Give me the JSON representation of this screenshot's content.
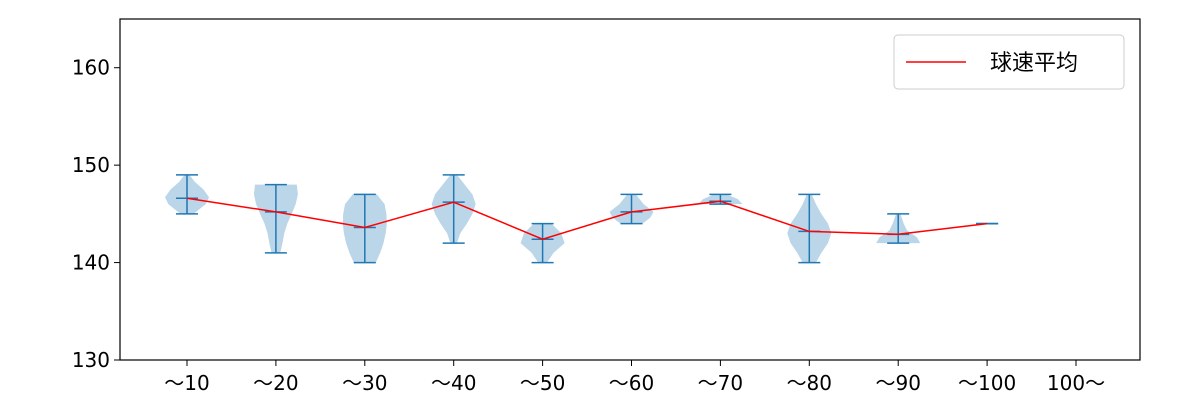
{
  "chart_data": {
    "type": "violin",
    "title": "",
    "xlabel": "",
    "ylabel": "",
    "categories": [
      "～10",
      "～20",
      "～30",
      "～40",
      "～50",
      "～60",
      "～70",
      "～80",
      "～90",
      "～100",
      "100～"
    ],
    "ylim": [
      130,
      165
    ],
    "yticks": [
      130,
      140,
      150,
      160
    ],
    "series": [
      {
        "name": "球速平均",
        "color": "#ff0000",
        "values": [
          146.6,
          145.2,
          143.6,
          146.2,
          142.4,
          145.2,
          146.3,
          143.2,
          142.9,
          144.0,
          null
        ]
      }
    ],
    "distributions": [
      {
        "category": "～10",
        "min": 145,
        "max": 149,
        "mean": 146.6,
        "profile": [
          [
            145,
            0.3
          ],
          [
            146,
            0.85
          ],
          [
            146.7,
            1.0
          ],
          [
            147.5,
            0.75
          ],
          [
            148.3,
            0.35
          ],
          [
            149,
            0.12
          ]
        ]
      },
      {
        "category": "～20",
        "min": 141,
        "max": 148,
        "mean": 145.2,
        "profile": [
          [
            141,
            0.2
          ],
          [
            142,
            0.3
          ],
          [
            143,
            0.38
          ],
          [
            144,
            0.52
          ],
          [
            145,
            0.72
          ],
          [
            146,
            0.9
          ],
          [
            147,
            1.0
          ],
          [
            148,
            0.95
          ]
        ]
      },
      {
        "category": "～30",
        "min": 140,
        "max": 147,
        "mean": 143.6,
        "profile": [
          [
            140,
            0.5
          ],
          [
            141,
            0.7
          ],
          [
            142,
            0.85
          ],
          [
            143,
            0.95
          ],
          [
            144,
            1.0
          ],
          [
            145,
            0.98
          ],
          [
            146,
            0.9
          ],
          [
            147,
            0.55
          ]
        ]
      },
      {
        "category": "～40",
        "min": 142,
        "max": 149,
        "mean": 146.2,
        "profile": [
          [
            142,
            0.15
          ],
          [
            143,
            0.3
          ],
          [
            144,
            0.6
          ],
          [
            145,
            0.85
          ],
          [
            146,
            1.0
          ],
          [
            147,
            0.85
          ],
          [
            148,
            0.5
          ],
          [
            149,
            0.15
          ]
        ]
      },
      {
        "category": "～50",
        "min": 140,
        "max": 144,
        "mean": 142.4,
        "profile": [
          [
            140,
            0.2
          ],
          [
            141,
            0.5
          ],
          [
            142,
            1.0
          ],
          [
            143,
            0.85
          ],
          [
            144,
            0.4
          ]
        ]
      },
      {
        "category": "～60",
        "min": 144,
        "max": 147,
        "mean": 145.2,
        "profile": [
          [
            144,
            0.5
          ],
          [
            144.6,
            0.85
          ],
          [
            145.2,
            1.0
          ],
          [
            146,
            0.55
          ],
          [
            147,
            0.2
          ]
        ]
      },
      {
        "category": "～70",
        "min": 146,
        "max": 147,
        "mean": 146.3,
        "profile": [
          [
            146,
            1.0
          ],
          [
            146.5,
            0.8
          ],
          [
            147,
            0.3
          ]
        ]
      },
      {
        "category": "～80",
        "min": 140,
        "max": 147,
        "mean": 143.2,
        "profile": [
          [
            140,
            0.3
          ],
          [
            141,
            0.55
          ],
          [
            142,
            0.85
          ],
          [
            143,
            1.0
          ],
          [
            144,
            0.85
          ],
          [
            145,
            0.55
          ],
          [
            146,
            0.3
          ],
          [
            147,
            0.12
          ]
        ]
      },
      {
        "category": "～90",
        "min": 142,
        "max": 145,
        "mean": 142.9,
        "profile": [
          [
            142,
            1.0
          ],
          [
            142.6,
            0.85
          ],
          [
            143.3,
            0.4
          ],
          [
            144,
            0.25
          ],
          [
            145,
            0.1
          ]
        ]
      },
      {
        "category": "～100",
        "min": 144,
        "max": 144,
        "mean": 144.0,
        "profile": []
      }
    ],
    "legend": {
      "label": "球速平均",
      "position": "top-right"
    },
    "colors": {
      "violin": "#1f77b4",
      "mean_line": "#ff0000",
      "axis": "#000000"
    }
  }
}
